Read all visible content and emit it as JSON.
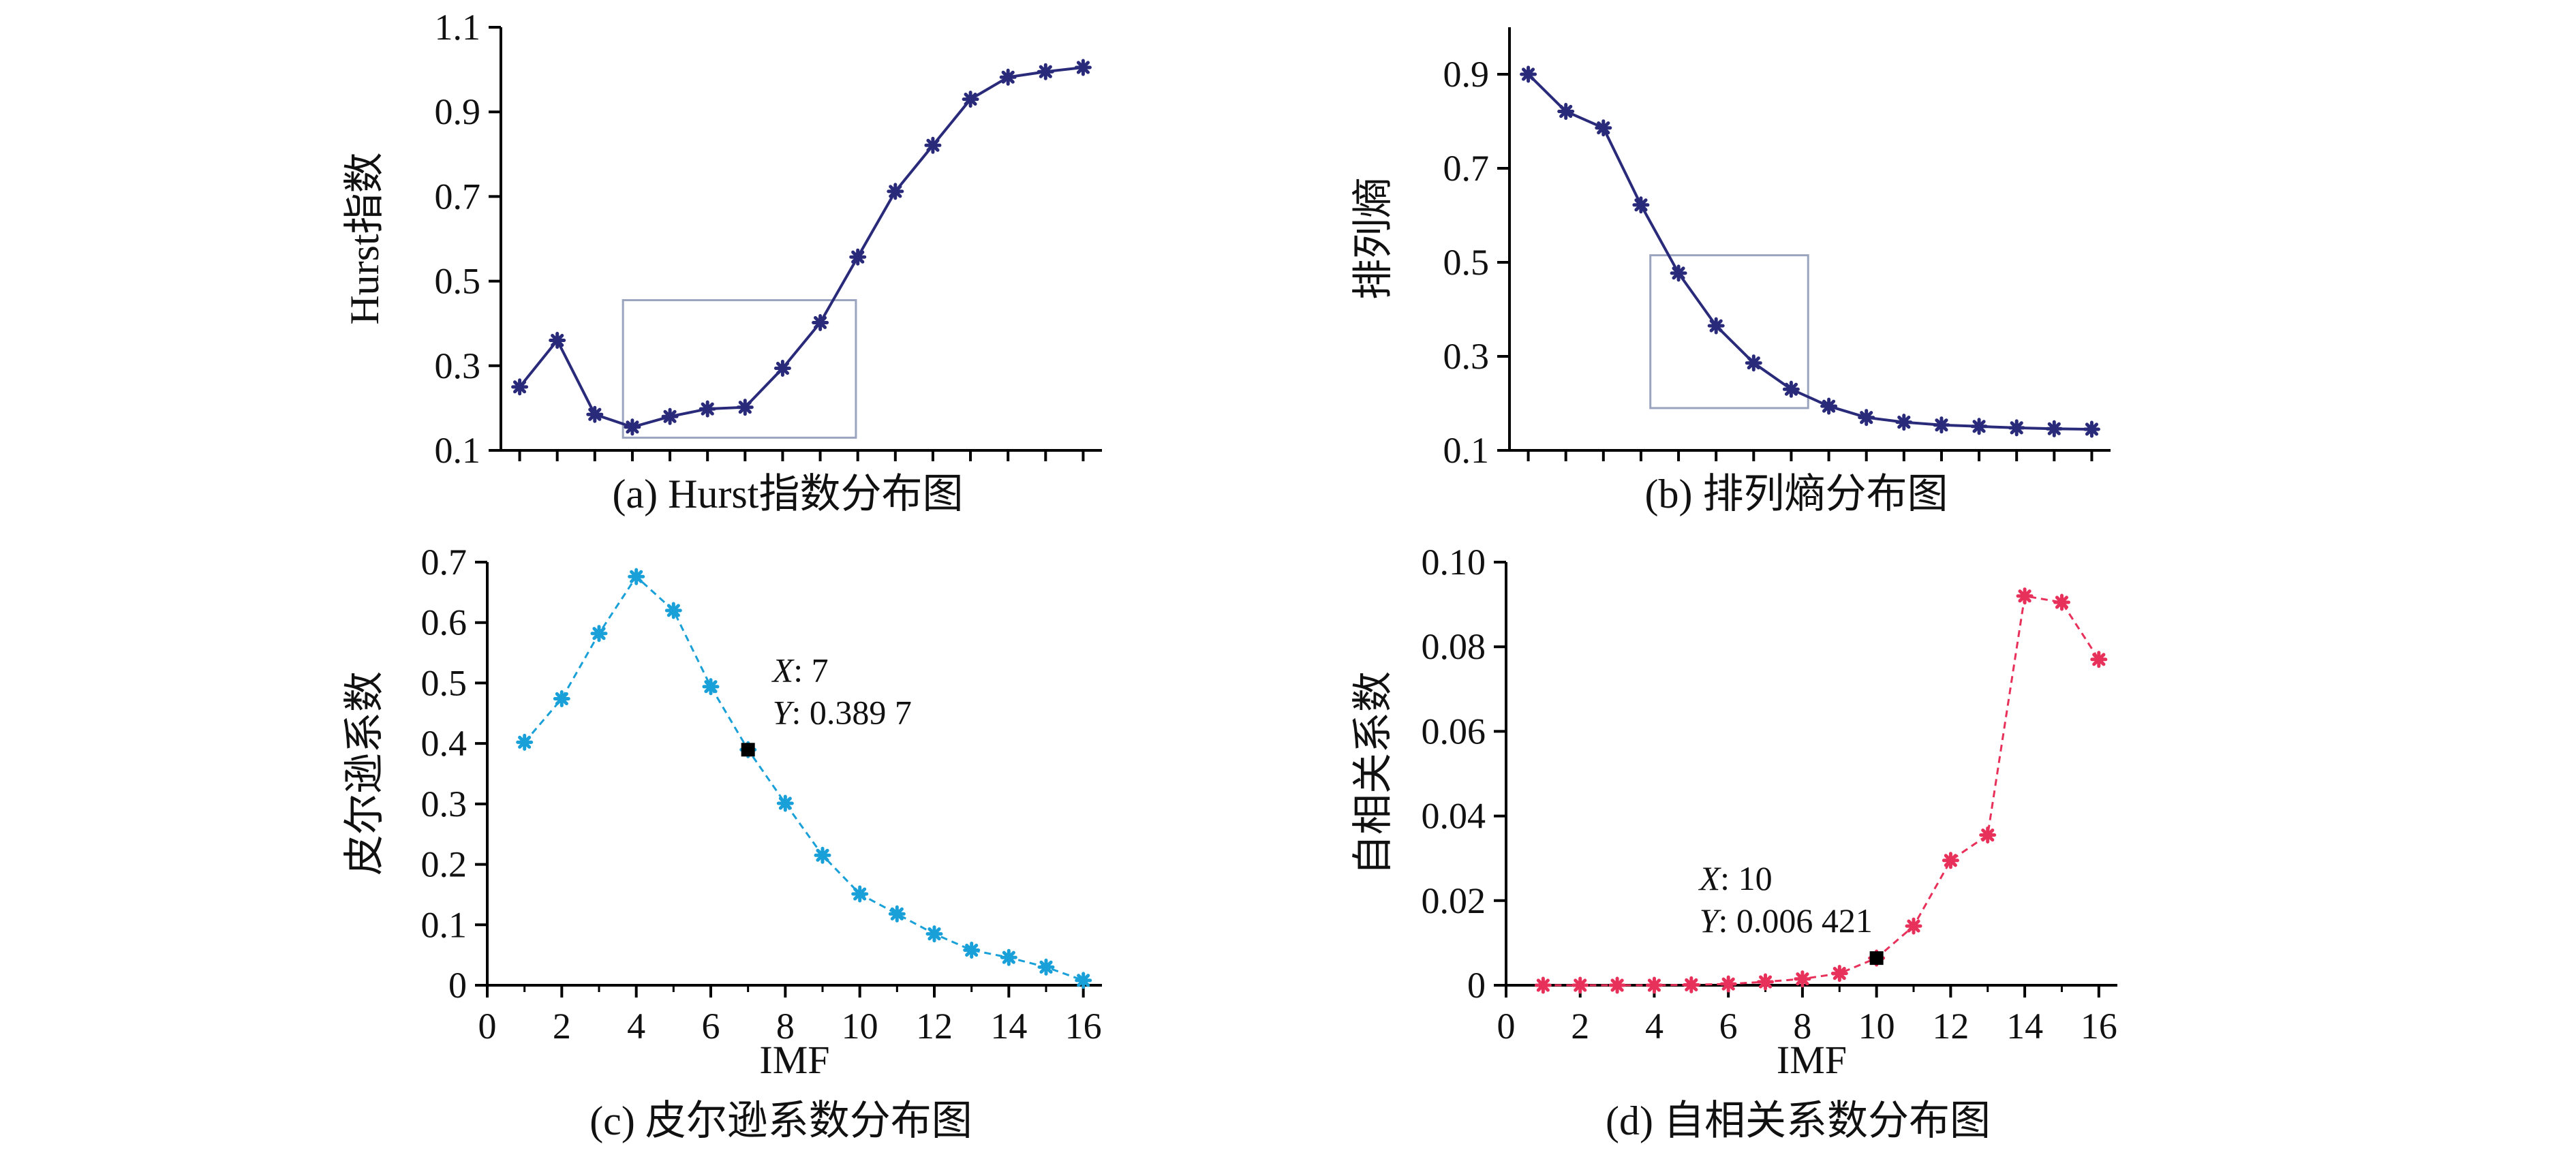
{
  "chart_data": [
    {
      "id": "a",
      "type": "line",
      "caption": "(a) Hurst指数分布图",
      "ylabel": "Hurst指数",
      "xlabel": "",
      "x": [
        1,
        2,
        3,
        4,
        5,
        6,
        7,
        8,
        9,
        10,
        11,
        12,
        13,
        14,
        15,
        16
      ],
      "xlim": [
        0.5,
        16.5
      ],
      "ylim": [
        0.1,
        1.1
      ],
      "yticks": [
        "0.1",
        "0.3",
        "0.5",
        "0.7",
        "0.9",
        "1.1"
      ],
      "series": [
        {
          "name": "Hurst",
          "values": [
            0.25,
            0.36,
            0.185,
            0.155,
            0.18,
            0.198,
            0.202,
            0.294,
            0.402,
            0.557,
            0.712,
            0.821,
            0.93,
            0.982,
            0.995,
            1.005
          ]
        }
      ],
      "color": "#2a2a7a",
      "dashed": false,
      "zoom_box": {
        "x": [
          3.75,
          9.95
        ],
        "y": [
          0.13,
          0.455
        ]
      },
      "annotation": null
    },
    {
      "id": "b",
      "type": "line",
      "caption": "(b) 排列熵分布图",
      "ylabel": "排列熵",
      "xlabel": "",
      "x": [
        1,
        2,
        3,
        4,
        5,
        6,
        7,
        8,
        9,
        10,
        11,
        12,
        13,
        14,
        15,
        16
      ],
      "xlim": [
        0.5,
        16.5
      ],
      "ylim": [
        0.1,
        1.0
      ],
      "yticks": [
        "0.1",
        "0.3",
        "0.5",
        "0.7",
        "0.9"
      ],
      "series": [
        {
          "name": "排列熵",
          "values": [
            0.9,
            0.821,
            0.786,
            0.622,
            0.477,
            0.365,
            0.286,
            0.23,
            0.194,
            0.17,
            0.16,
            0.154,
            0.151,
            0.148,
            0.146,
            0.145
          ]
        }
      ],
      "color": "#2a2a7a",
      "dashed": false,
      "zoom_box": {
        "x": [
          4.25,
          8.45
        ],
        "y": [
          0.19,
          0.515
        ]
      },
      "annotation": null
    },
    {
      "id": "c",
      "type": "line",
      "caption": "(c) 皮尔逊系数分布图",
      "ylabel": "皮尔逊系数",
      "xlabel": "IMF",
      "x": [
        1,
        2,
        3,
        4,
        5,
        6,
        7,
        8,
        9,
        10,
        11,
        12,
        13,
        14,
        15,
        16
      ],
      "xlim": [
        0,
        16.5
      ],
      "ylim": [
        0,
        0.7
      ],
      "xticks": [
        "0",
        "2",
        "4",
        "6",
        "8",
        "10",
        "12",
        "14",
        "16"
      ],
      "yticks": [
        "0",
        "0.1",
        "0.2",
        "0.3",
        "0.4",
        "0.5",
        "0.6",
        "0.7"
      ],
      "series": [
        {
          "name": "皮尔逊系数",
          "values": [
            0.402,
            0.474,
            0.582,
            0.676,
            0.62,
            0.494,
            0.3897,
            0.301,
            0.215,
            0.151,
            0.118,
            0.085,
            0.058,
            0.046,
            0.03,
            0.008
          ]
        }
      ],
      "color": "#1aa0d8",
      "dashed": true,
      "zoom_box": null,
      "annotation": {
        "x": 7,
        "y": 0.3897,
        "x_label": "X",
        "x_value": ": 7",
        "y_label": "Y",
        "y_value": ": 0.389 7"
      }
    },
    {
      "id": "d",
      "type": "line",
      "caption": "(d) 自相关系数分布图",
      "ylabel": "自相关系数",
      "xlabel": "IMF",
      "x": [
        1,
        2,
        3,
        4,
        5,
        6,
        7,
        8,
        9,
        10,
        11,
        12,
        13,
        14,
        15,
        16
      ],
      "xlim": [
        0,
        16.5
      ],
      "ylim": [
        0,
        0.1
      ],
      "xticks": [
        "0",
        "2",
        "4",
        "6",
        "8",
        "10",
        "12",
        "14",
        "16"
      ],
      "yticks": [
        "0",
        "0.02",
        "0.04",
        "0.06",
        "0.08",
        "0.10"
      ],
      "series": [
        {
          "name": "自相关系数",
          "values": [
            0.0,
            0.0,
            0.0,
            0.0,
            0.0001,
            0.0003,
            0.0008,
            0.0015,
            0.0028,
            0.006421,
            0.014,
            0.0295,
            0.0355,
            0.092,
            0.0905,
            0.077
          ]
        }
      ],
      "color": "#e8315a",
      "dashed": true,
      "zoom_box": null,
      "annotation": {
        "x": 10,
        "y": 0.006421,
        "x_label": "X",
        "x_value": ": 10",
        "y_label": "Y",
        "y_value": ": 0.006 421"
      }
    }
  ]
}
